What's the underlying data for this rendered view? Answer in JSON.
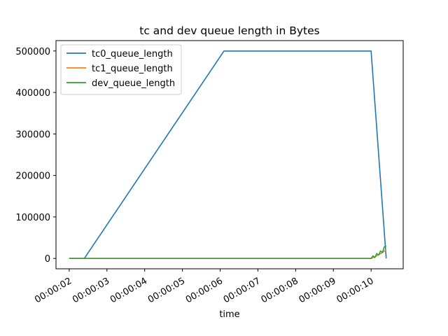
{
  "chart_data": {
    "type": "line",
    "title": "tc and dev queue length in Bytes",
    "xlabel": "time",
    "ylabel": "",
    "x_tick_labels": [
      "00:00:02",
      "00:00:03",
      "00:00:04",
      "00:00:05",
      "00:00:06",
      "00:00:07",
      "00:00:08",
      "00:00:09",
      "00:00:10"
    ],
    "y_tick_labels": [
      "0",
      "100000",
      "200000",
      "300000",
      "400000",
      "500000"
    ],
    "y_ticks": [
      0,
      100000,
      200000,
      300000,
      400000,
      500000
    ],
    "xlim": [
      "00:00:01.65",
      "00:00:10.85"
    ],
    "ylim": [
      -25000,
      525000
    ],
    "grid": false,
    "legend_position": "upper-left",
    "series": [
      {
        "name": "tc0_queue_length",
        "color": "#1f77b4",
        "points": [
          [
            "00:00:02.0",
            0
          ],
          [
            "00:00:02.4",
            0
          ],
          [
            "00:00:06.1",
            499800
          ],
          [
            "00:00:10.0",
            499800
          ],
          [
            "00:00:10.4",
            0
          ]
        ]
      },
      {
        "name": "tc1_queue_length",
        "color": "#ff7f0e",
        "points": [
          [
            "00:00:02.0",
            0
          ],
          [
            "00:00:10.0",
            0
          ],
          [
            "00:00:10.1",
            4000
          ],
          [
            "00:00:10.2",
            9000
          ],
          [
            "00:00:10.3",
            14000
          ],
          [
            "00:00:10.4",
            21000
          ]
        ]
      },
      {
        "name": "dev_queue_length",
        "color": "#2ca02c",
        "points": [
          [
            "00:00:02.0",
            0
          ],
          [
            "00:00:10.0",
            0
          ],
          [
            "00:00:10.05",
            6000
          ],
          [
            "00:00:10.1",
            2000
          ],
          [
            "00:00:10.15",
            12000
          ],
          [
            "00:00:10.2",
            8000
          ],
          [
            "00:00:10.25",
            18000
          ],
          [
            "00:00:10.3",
            14000
          ],
          [
            "00:00:10.35",
            28000
          ],
          [
            "00:00:10.4",
            30000
          ]
        ]
      }
    ]
  }
}
